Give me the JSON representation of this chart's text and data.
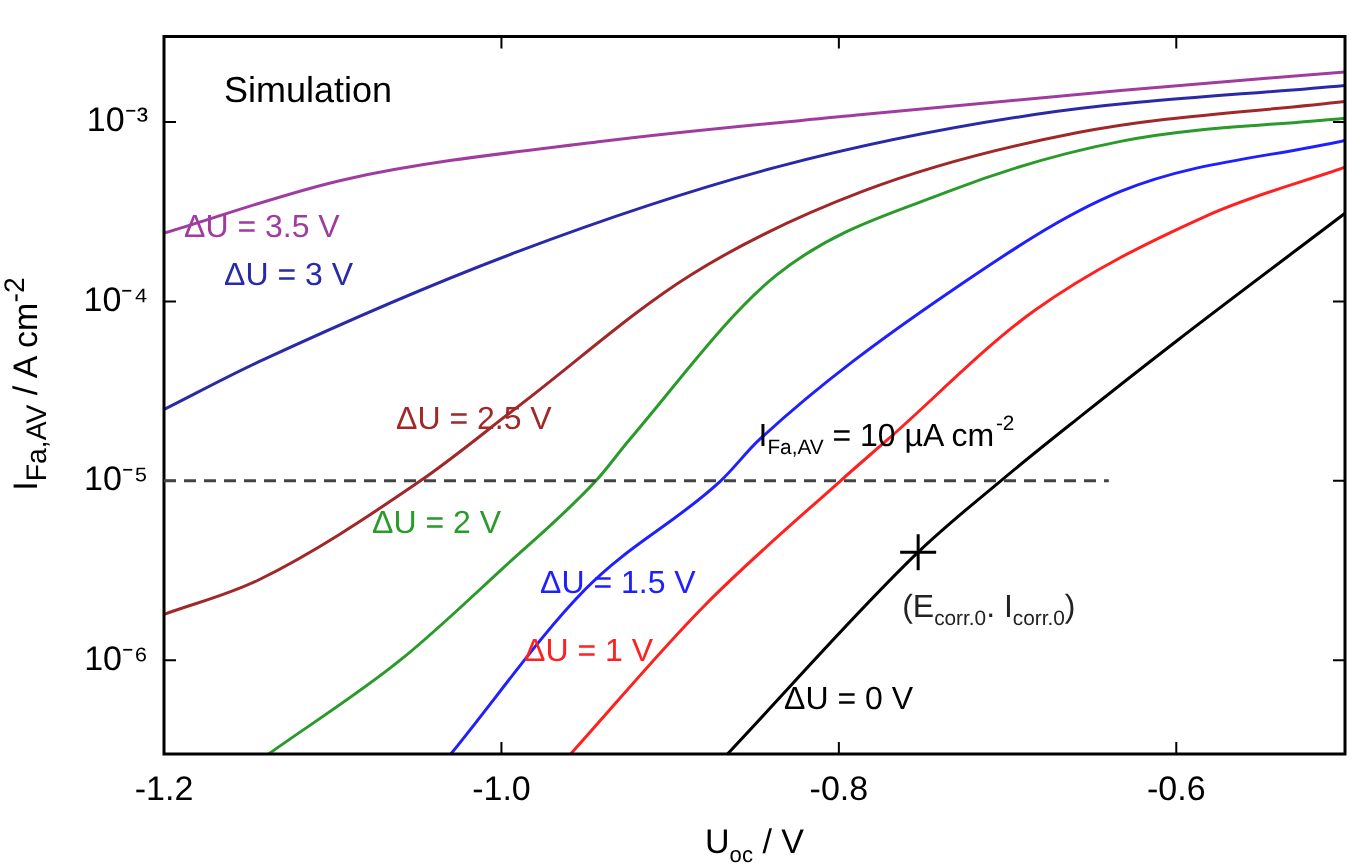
{
  "chart_data": {
    "type": "line",
    "xlabel": "U$_{oc}$ / V",
    "ylabel": "I$_{Fa,AV}$ / A cm$^{-2}$",
    "log": "y",
    "grid": false,
    "legend": false,
    "marker": "none",
    "line_style": "solid",
    "xlim": [
      -1.2,
      -0.5
    ],
    "xticks": [
      {
        "value": -1.2,
        "label": "-1.2"
      },
      {
        "value": -1.0,
        "label": "-1.0"
      },
      {
        "value": -0.8,
        "label": "-0.8"
      },
      {
        "value": -0.6,
        "label": "-0.6"
      }
    ],
    "ylim": [
      3e-07,
      0.003
    ],
    "yticks": [
      {
        "value": 1e-06,
        "label": "10⁻⁶"
      },
      {
        "value": 1e-05,
        "label": "10⁻⁵"
      },
      {
        "value": 0.0001,
        "label": "10⁻⁴"
      },
      {
        "value": 0.001,
        "label": "10⁻³"
      }
    ],
    "series": [
      {
        "name": "ΔU = 3.5 V",
        "color": "#a03ca0",
        "x": [
          -1.2,
          -1.092,
          -0.94,
          -0.786,
          -0.633,
          -0.5
        ],
        "values": [
          0.00024,
          0.00048,
          0.00078,
          0.0011,
          0.0015,
          0.0019
        ]
      },
      {
        "name": "ΔU = 3 V",
        "color": "#2a2aa8",
        "x": [
          -1.2,
          -1.144,
          -0.99,
          -0.837,
          -0.684,
          -0.5
        ],
        "values": [
          2.5e-05,
          4.6e-05,
          0.00019,
          0.00056,
          0.0011,
          0.0016
        ]
      },
      {
        "name": "ΔU = 2.5 V",
        "color": "#a02828",
        "x": [
          -1.2,
          -1.144,
          -1.048,
          -0.99,
          -0.888,
          -0.786,
          -0.659,
          -0.5
        ],
        "values": [
          1.8e-06,
          2.8e-06,
          1e-05,
          2.6e-05,
          0.00014,
          0.00041,
          0.00087,
          0.0013
        ]
      },
      {
        "name": "ΔU = 2 V",
        "color": "#2a9a2a",
        "x": [
          -1.138,
          -1.06,
          -1.0,
          -0.944,
          -0.924,
          -0.837,
          -0.735,
          -0.633,
          -0.5
        ],
        "values": [
          3e-07,
          1e-06,
          3.2e-06,
          1e-05,
          1.7e-05,
          0.00014,
          0.00041,
          0.00078,
          0.00105
        ]
      },
      {
        "name": "ΔU = 1.5 V",
        "color": "#2020ff",
        "x": [
          -1.03,
          -0.95,
          -0.87,
          -0.847,
          -0.736,
          -0.633,
          -0.5
        ],
        "values": [
          3e-07,
          2.5e-06,
          1e-05,
          1.7e-05,
          0.00011,
          0.00041,
          0.00079
        ]
      },
      {
        "name": "ΔU = 1 V",
        "color": "#ff2020",
        "x": [
          -0.959,
          -0.88,
          -0.799,
          -0.771,
          -0.684,
          -0.582,
          -0.5
        ],
        "values": [
          3e-07,
          2e-06,
          1e-05,
          1.7e-05,
          8.9e-05,
          0.0003,
          0.00056
        ]
      },
      {
        "name": "ΔU = 0 V",
        "color": "#000000",
        "x": [
          -0.866,
          -0.753,
          -0.704,
          -0.659,
          -0.6,
          -0.5
        ],
        "values": [
          3e-07,
          4e-06,
          1e-05,
          2.2e-05,
          6e-05,
          0.00031
        ]
      },
      {
        "type": "scatter",
        "marker": "cross",
        "color": "#000000",
        "x": [
          -0.753
        ],
        "values": [
          4e-06
        ]
      }
    ],
    "ref_lines": [
      {
        "axis": "y",
        "value": 1e-05,
        "label": "I$_{Fa,AV}$ = 10 µA cm$^{-2}$",
        "color": "#444444",
        "line_style": "dashed"
      }
    ],
    "annotations": [
      "Simulation",
      {
        "text": "(E$_{corr.0}$. I$_{corr.0}$)",
        "x": -0.753,
        "y": 4e-06
      }
    ]
  }
}
